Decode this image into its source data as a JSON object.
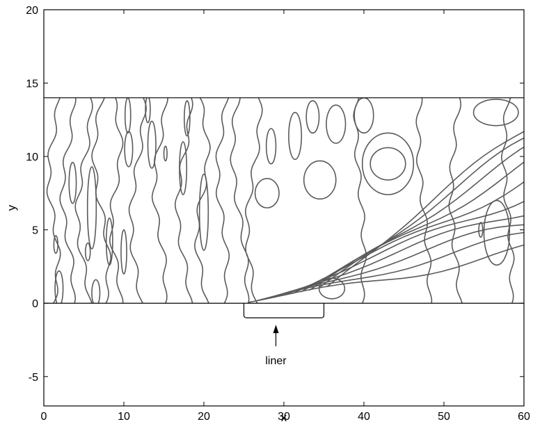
{
  "chart_data": {
    "type": "contour",
    "title": "",
    "xlabel": "x",
    "ylabel": "y",
    "xlim": [
      0,
      60
    ],
    "ylim": [
      -7,
      20
    ],
    "x_ticks": [
      0,
      10,
      20,
      30,
      40,
      50,
      60
    ],
    "y_ticks": [
      -5,
      0,
      5,
      10,
      15,
      20
    ],
    "duct": {
      "y_lower": 0,
      "y_upper": 14
    },
    "liner": {
      "x_start": 25,
      "x_end": 35,
      "label": "liner",
      "arrow_x": 29
    },
    "grid": false,
    "legend": "none"
  }
}
